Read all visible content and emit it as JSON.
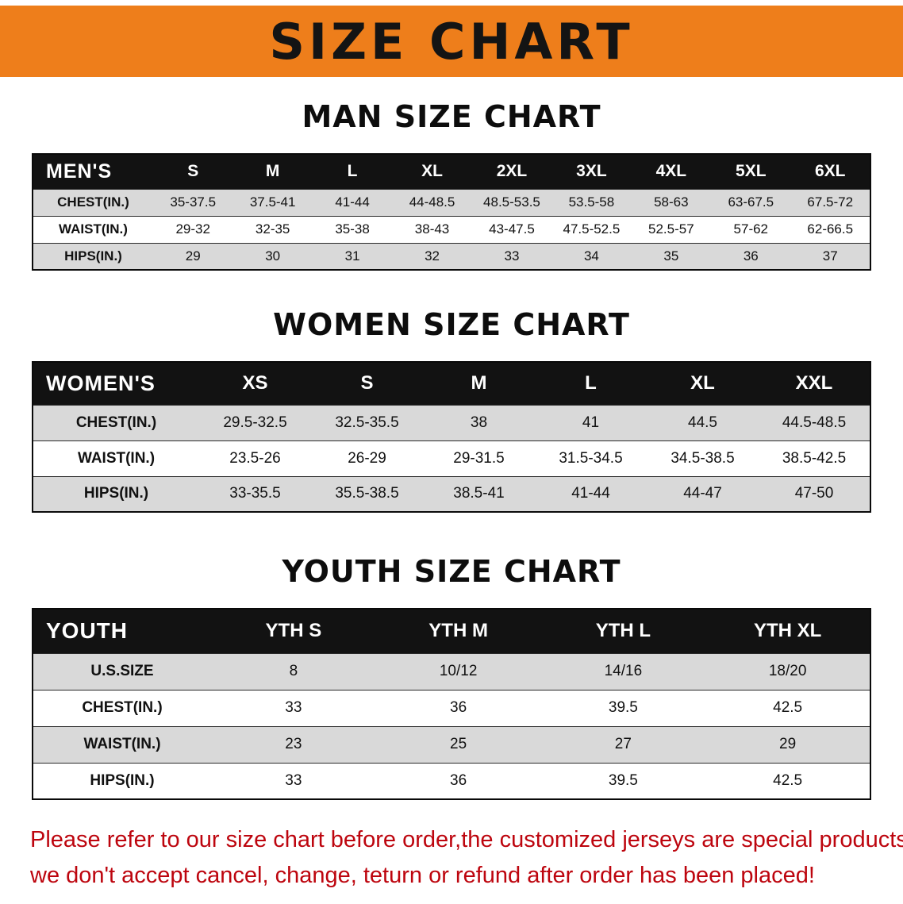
{
  "banner": {
    "title": "SIZE CHART",
    "bg_color": "#ee7e1b"
  },
  "sections": {
    "men": {
      "title": "MAN SIZE CHART"
    },
    "women": {
      "title": "WOMEN SIZE CHART"
    },
    "youth": {
      "title": "YOUTH SIZE CHART"
    }
  },
  "tables": {
    "men": {
      "header": [
        "MEN'S",
        "S",
        "M",
        "L",
        "XL",
        "2XL",
        "3XL",
        "4XL",
        "5XL",
        "6XL"
      ],
      "rows": [
        [
          "CHEST(IN.)",
          "35-37.5",
          "37.5-41",
          "41-44",
          "44-48.5",
          "48.5-53.5",
          "53.5-58",
          "58-63",
          "63-67.5",
          "67.5-72"
        ],
        [
          "WAIST(IN.)",
          "29-32",
          "32-35",
          "35-38",
          "38-43",
          "43-47.5",
          "47.5-52.5",
          "52.5-57",
          "57-62",
          "62-66.5"
        ],
        [
          "HIPS(IN.)",
          "29",
          "30",
          "31",
          "32",
          "33",
          "34",
          "35",
          "36",
          "37"
        ]
      ]
    },
    "women": {
      "header": [
        "WOMEN'S",
        "XS",
        "S",
        "M",
        "L",
        "XL",
        "XXL"
      ],
      "rows": [
        [
          "CHEST(IN.)",
          "29.5-32.5",
          "32.5-35.5",
          "38",
          "41",
          "44.5",
          "44.5-48.5"
        ],
        [
          "WAIST(IN.)",
          "23.5-26",
          "26-29",
          "29-31.5",
          "31.5-34.5",
          "34.5-38.5",
          "38.5-42.5"
        ],
        [
          "HIPS(IN.)",
          "33-35.5",
          "35.5-38.5",
          "38.5-41",
          "41-44",
          "44-47",
          "47-50"
        ]
      ]
    },
    "youth": {
      "header": [
        "YOUTH",
        "YTH S",
        "YTH M",
        "YTH L",
        "YTH XL"
      ],
      "rows": [
        [
          "U.S.SIZE",
          "8",
          "10/12",
          "14/16",
          "18/20"
        ],
        [
          "CHEST(IN.)",
          "33",
          "36",
          "39.5",
          "42.5"
        ],
        [
          "WAIST(IN.)",
          "23",
          "25",
          "27",
          "29"
        ],
        [
          "HIPS(IN.)",
          "33",
          "36",
          "39.5",
          "42.5"
        ]
      ]
    }
  },
  "footer": {
    "line1": "Please refer to our size chart before order,the customized jerseys are special products,",
    "line2": "we don't accept cancel, change, teturn or refund after order has been placed!",
    "color": "#bd050e"
  }
}
